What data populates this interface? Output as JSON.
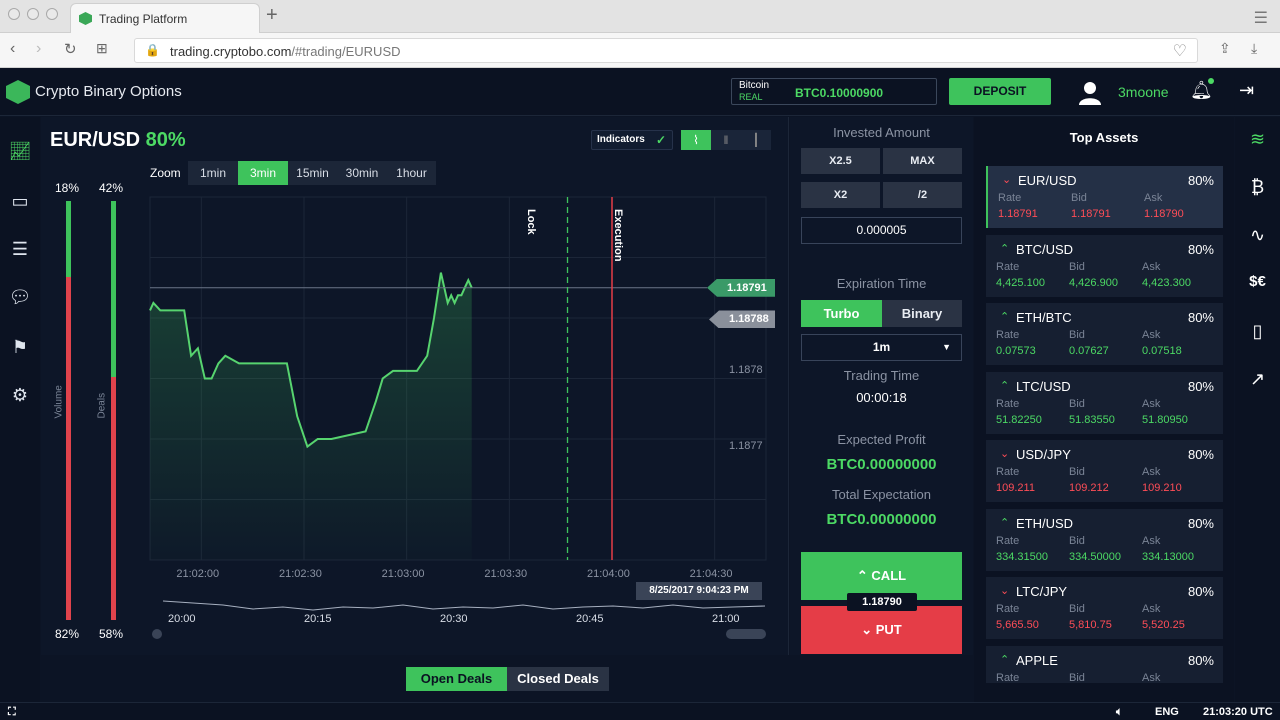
{
  "browser": {
    "tab_title": "Trading Platform",
    "url_host": "trading.cryptobo.com",
    "url_path": "/#trading/EURUSD"
  },
  "header": {
    "brand": "Crypto Binary Options",
    "wallet_currency": "Bitcoin",
    "wallet_mode": "REAL",
    "wallet_balance": "BTC0.10000900",
    "deposit_label": "DEPOSIT",
    "username": "3moone"
  },
  "chart": {
    "pair": "EUR/USD",
    "payout": "80%",
    "indicators_label": "Indicators",
    "zoom_label": "Zoom",
    "zoom_options": [
      "1min",
      "3min",
      "15min",
      "30min",
      "1hour"
    ],
    "zoom_active": "3min",
    "volume_label": "Volume",
    "deals_label": "Deals",
    "volume_up": "18%",
    "volume_down": "82%",
    "deals_up": "42%",
    "deals_down": "58%",
    "lock_label": "Lock",
    "execution_label": "Execution",
    "current_price": "1.18791",
    "prev_price": "1.18788",
    "crosshair_date": "8/25/2017 9:04:23 PM",
    "open_deals": "Open Deals",
    "closed_deals": "Closed Deals"
  },
  "chart_data": {
    "type": "line",
    "x_ticks": [
      "21:02:00",
      "21:02:30",
      "21:03:00",
      "21:03:30",
      "21:04:00",
      "21:04:30"
    ],
    "y_ticks": [
      "1.1878",
      "1.1877"
    ],
    "navigator_ticks": [
      "20:00",
      "20:15",
      "20:30",
      "20:45",
      "21:00"
    ],
    "series": [
      {
        "x": [
          "21:01:45",
          "21:01:46",
          "21:01:48",
          "21:01:55",
          "21:01:57",
          "21:01:59",
          "21:02:01",
          "21:02:03",
          "21:02:05",
          "21:02:07",
          "21:02:11",
          "21:02:17",
          "21:02:25",
          "21:02:28",
          "21:02:31",
          "21:02:34",
          "21:02:38",
          "21:02:48",
          "21:02:51",
          "21:02:53",
          "21:02:56",
          "21:03:03",
          "21:03:06",
          "21:03:08",
          "21:03:10",
          "21:03:11",
          "21:03:12",
          "21:03:13",
          "21:03:14",
          "21:03:15",
          "21:03:16",
          "21:03:17",
          "21:03:18",
          "21:03:19"
        ],
        "values": [
          1.18788,
          1.18789,
          1.18788,
          1.18788,
          1.18782,
          1.18783,
          1.18779,
          1.18779,
          1.18781,
          1.18782,
          1.18781,
          1.18781,
          1.18781,
          1.18774,
          1.1877,
          1.18771,
          1.18771,
          1.18772,
          1.18776,
          1.18779,
          1.1878,
          1.1878,
          1.18782,
          1.18787,
          1.18793,
          1.18791,
          1.18789,
          1.1879,
          1.18789,
          1.1879,
          1.1879,
          1.18791,
          1.18792,
          1.18791
        ]
      }
    ],
    "ylim": [
      1.18755,
      1.18803
    ],
    "grid": true
  },
  "trade": {
    "invested_label": "Invested Amount",
    "btn_x25": "X2.5",
    "btn_max": "MAX",
    "btn_x2": "X2",
    "btn_half": "/2",
    "amount": "0.000005",
    "expiration_label": "Expiration Time",
    "turbo": "Turbo",
    "binary": "Binary",
    "duration": "1m",
    "trading_time_label": "Trading Time",
    "trading_time": "00:00:18",
    "expected_profit_label": "Expected Profit",
    "expected_profit": "BTC0.00000000",
    "total_expectation_label": "Total Expectation",
    "total_expectation": "BTC0.00000000",
    "call": "CALL",
    "put": "PUT",
    "mid_price": "1.18790"
  },
  "assets": {
    "title": "Top Assets",
    "rate_label": "Rate",
    "bid_label": "Bid",
    "ask_label": "Ask",
    "items": [
      {
        "name": "EUR/USD",
        "pct": "80%",
        "dir": "down",
        "rate": "1.18791",
        "bid": "1.18791",
        "ask": "1.18790",
        "color": "#ff4d57"
      },
      {
        "name": "BTC/USD",
        "pct": "80%",
        "dir": "up",
        "rate": "4,425.100",
        "bid": "4,426.900",
        "ask": "4,423.300",
        "color": "#4cd964"
      },
      {
        "name": "ETH/BTC",
        "pct": "80%",
        "dir": "up",
        "rate": "0.07573",
        "bid": "0.07627",
        "ask": "0.07518",
        "color": "#4cd964"
      },
      {
        "name": "LTC/USD",
        "pct": "80%",
        "dir": "up",
        "rate": "51.82250",
        "bid": "51.83550",
        "ask": "51.80950",
        "color": "#4cd964"
      },
      {
        "name": "USD/JPY",
        "pct": "80%",
        "dir": "down",
        "rate": "109.211",
        "bid": "109.212",
        "ask": "109.210",
        "color": "#ff4d57"
      },
      {
        "name": "ETH/USD",
        "pct": "80%",
        "dir": "up",
        "rate": "334.31500",
        "bid": "334.50000",
        "ask": "334.13000",
        "color": "#4cd964"
      },
      {
        "name": "LTC/JPY",
        "pct": "80%",
        "dir": "down",
        "rate": "5,665.50",
        "bid": "5,810.75",
        "ask": "5,520.25",
        "color": "#ff4d57"
      },
      {
        "name": "APPLE",
        "pct": "80%",
        "dir": "up",
        "rate": "",
        "bid": "",
        "ask": "",
        "color": "#4cd964"
      }
    ]
  },
  "footer": {
    "lang": "ENG",
    "clock": "21:03:20 UTC"
  },
  "colors": {
    "accent_green": "#3ec35c",
    "accent_red": "#e53d47",
    "background": "#0c1425"
  }
}
